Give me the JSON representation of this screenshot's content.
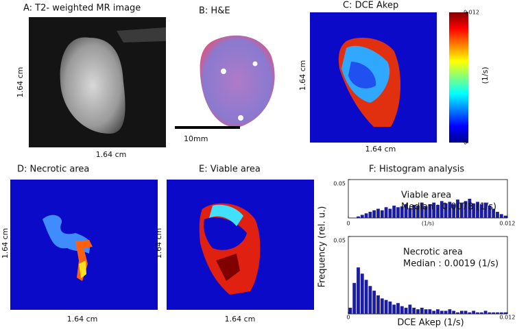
{
  "panels": [
    {
      "title": "A: T2- weighted MR image",
      "x_label": "1.64 cm",
      "y_label": "1.64 cm"
    },
    {
      "title": "B: H&E",
      "scale_bar": "10mm"
    },
    {
      "title": "C: DCE Akep",
      "x_label": "1.64 cm",
      "y_label": "1.64 cm",
      "colorbar": {
        "label": "(1/s)",
        "ticks": [
          0,
          0.012
        ]
      }
    },
    {
      "title": "D: Necrotic area",
      "x_label": "1.64 cm",
      "y_label": "1.64 cm"
    },
    {
      "title": "E: Viable area",
      "x_label": "1.64 cm",
      "y_label": "1.64 cm"
    }
  ],
  "panel_f": {
    "title": "F: Histogram analysis",
    "y_label": "Frequency (rel. u.)"
  },
  "chart_data": [
    {
      "type": "histogram",
      "color": "#1c1ca0",
      "bins": [
        0,
        0.0003,
        0.0006,
        0.0009,
        0.0012,
        0.0015,
        0.0018,
        0.0021,
        0.0024,
        0.0027,
        0.003,
        0.0033,
        0.0036,
        0.0039,
        0.0042,
        0.0045,
        0.0048,
        0.0051,
        0.0054,
        0.0057,
        0.006,
        0.0063,
        0.0066,
        0.0069,
        0.0072,
        0.0075,
        0.0078,
        0.0081,
        0.0084,
        0.0087,
        0.009,
        0.0093,
        0.0096,
        0.0099,
        0.0102,
        0.0105,
        0.0108,
        0.0111,
        0.0114,
        0.0117,
        0.012
      ],
      "values": [
        0,
        0,
        0.002,
        0.004,
        0.006,
        0.008,
        0.01,
        0.012,
        0.01,
        0.014,
        0.012,
        0.016,
        0.014,
        0.015,
        0.018,
        0.013,
        0.017,
        0.016,
        0.02,
        0.015,
        0.018,
        0.02,
        0.017,
        0.022,
        0.019,
        0.021,
        0.018,
        0.024,
        0.02,
        0.022,
        0.025,
        0.019,
        0.021,
        0.018,
        0.02,
        0.016,
        0.012,
        0.008,
        0.005,
        0.003
      ],
      "xlim": [
        0,
        0.012
      ],
      "xticks": [
        0,
        0.012
      ],
      "ylim": [
        0,
        0.05
      ],
      "yticks": [
        0.05
      ],
      "x_label": "(1/s)",
      "annotations": [
        "Viable area",
        "Median : 0.0078 (1/s)"
      ]
    },
    {
      "type": "histogram",
      "color": "#1c1ca0",
      "bins": [
        0,
        0.0003,
        0.0006,
        0.0009,
        0.0012,
        0.0015,
        0.0018,
        0.0021,
        0.0024,
        0.0027,
        0.003,
        0.0033,
        0.0036,
        0.0039,
        0.0042,
        0.0045,
        0.0048,
        0.0051,
        0.0054,
        0.0057,
        0.006,
        0.0063,
        0.0066,
        0.0069,
        0.0072,
        0.0075,
        0.0078,
        0.0081,
        0.0084,
        0.0087,
        0.009,
        0.0093,
        0.0096,
        0.0099,
        0.0102,
        0.0105,
        0.0108,
        0.0111,
        0.0114,
        0.0117,
        0.012
      ],
      "values": [
        0.004,
        0.02,
        0.03,
        0.026,
        0.022,
        0.018,
        0.015,
        0.012,
        0.01,
        0.009,
        0.008,
        0.006,
        0.007,
        0.005,
        0.004,
        0.006,
        0.004,
        0.003,
        0.004,
        0.003,
        0.003,
        0.002,
        0.003,
        0.002,
        0.002,
        0.003,
        0.002,
        0.001,
        0.002,
        0.002,
        0.001,
        0.002,
        0.001,
        0.001,
        0.002,
        0.001,
        0.001,
        0.001,
        0.001,
        0.001
      ],
      "xlim": [
        0,
        0.012
      ],
      "xticks": [
        0,
        0.012
      ],
      "ylim": [
        0,
        0.05
      ],
      "yticks": [
        0.05
      ],
      "x_label": "DCE Akep (1/s)",
      "annotations": [
        "Necrotic area",
        "Median : 0.0019 (1/s)"
      ]
    }
  ]
}
